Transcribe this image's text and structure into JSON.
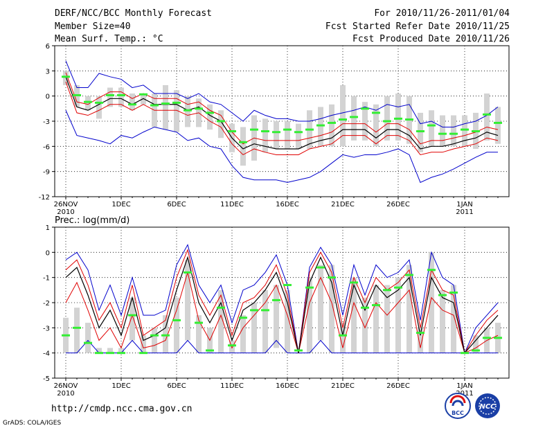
{
  "header": {
    "title": "DERF/NCC/BCC Monthly Forecast",
    "member_size": "Member Size=40",
    "variable": "Mean Surf. Temp.: °C",
    "period": "For 2010/11/26-2011/01/04",
    "start_date": "Fcst Started Refer Date 2010/11/25",
    "produced_date": "Fcst Produced Date 2010/11/26"
  },
  "footer": {
    "url": "http://cmdp.ncc.cma.gov.cn",
    "credit": "GrADS: COLA/IGES",
    "logo_left_text": "BCC",
    "logo_right_text": "NCC"
  },
  "colors": {
    "mean": "#000000",
    "spread": "#e00000",
    "envelope": "#0000cc",
    "box": "#d3d3d3",
    "median": "#33ee33",
    "grid": "#000000"
  },
  "chart_data": [
    {
      "type": "line",
      "title": "Mean Surf. Temp.: °C",
      "xlabel": "",
      "ylabel": "°C",
      "ylim": [
        -12,
        6
      ],
      "yticks": [
        6,
        3,
        0,
        -3,
        -6,
        -9,
        -12
      ],
      "xticks": [
        {
          "day": 0,
          "label": "26NOV",
          "sub": "2010"
        },
        {
          "day": 5,
          "label": "1DEC"
        },
        {
          "day": 10,
          "label": "6DEC"
        },
        {
          "day": 15,
          "label": "11DEC"
        },
        {
          "day": 20,
          "label": "16DEC"
        },
        {
          "day": 25,
          "label": "21DEC"
        },
        {
          "day": 30,
          "label": "26DEC"
        },
        {
          "day": 36,
          "label": "1JAN",
          "sub": "2011"
        }
      ],
      "x_days": [
        0,
        1,
        2,
        3,
        4,
        5,
        6,
        7,
        8,
        9,
        10,
        11,
        12,
        13,
        14,
        15,
        16,
        17,
        18,
        19,
        20,
        21,
        22,
        23,
        24,
        25,
        26,
        27,
        28,
        29,
        30,
        31,
        32,
        33,
        34,
        35,
        36,
        37,
        38,
        39
      ],
      "series": [
        {
          "name": "ensemble mean",
          "values": [
            2.3,
            -1.3,
            -1.7,
            -1.0,
            -0.3,
            -0.3,
            -1.0,
            -0.3,
            -1.0,
            -1.0,
            -1.0,
            -1.7,
            -1.3,
            -2.3,
            -3.0,
            -5.0,
            -6.3,
            -5.7,
            -6.0,
            -6.3,
            -6.3,
            -6.3,
            -5.7,
            -5.3,
            -5.0,
            -4.0,
            -4.0,
            -4.0,
            -5.0,
            -4.0,
            -4.0,
            -4.7,
            -6.3,
            -6.0,
            -6.0,
            -5.7,
            -5.3,
            -5.0,
            -4.3,
            -4.7
          ]
        },
        {
          "name": "mean + spread",
          "values": [
            2.8,
            -0.7,
            -1.0,
            -0.2,
            0.5,
            0.5,
            -0.3,
            0.3,
            -0.3,
            -0.3,
            -0.3,
            -1.0,
            -0.7,
            -1.7,
            -2.3,
            -4.3,
            -5.7,
            -5.0,
            -5.3,
            -5.3,
            -5.3,
            -5.3,
            -5.0,
            -4.7,
            -4.3,
            -3.3,
            -3.3,
            -3.3,
            -4.3,
            -3.3,
            -3.3,
            -4.0,
            -5.7,
            -5.3,
            -5.3,
            -5.0,
            -4.7,
            -4.3,
            -3.7,
            -4.0
          ]
        },
        {
          "name": "mean - spread",
          "values": [
            1.7,
            -2.0,
            -2.3,
            -1.7,
            -1.0,
            -1.0,
            -1.7,
            -1.0,
            -1.7,
            -1.7,
            -1.7,
            -2.3,
            -2.0,
            -3.0,
            -3.7,
            -5.7,
            -7.0,
            -6.3,
            -6.7,
            -7.0,
            -7.0,
            -7.0,
            -6.3,
            -6.0,
            -5.7,
            -4.7,
            -4.7,
            -4.7,
            -5.7,
            -4.7,
            -4.7,
            -5.3,
            -7.0,
            -6.7,
            -6.7,
            -6.3,
            -6.0,
            -5.7,
            -5.0,
            -5.3
          ]
        },
        {
          "name": "ensemble max",
          "values": [
            4.2,
            1.0,
            1.0,
            2.7,
            2.3,
            2.0,
            1.0,
            1.3,
            0.3,
            0.3,
            0.3,
            -0.3,
            0.3,
            -0.7,
            -1.0,
            -2.0,
            -3.0,
            -1.7,
            -2.3,
            -2.7,
            -2.7,
            -3.0,
            -3.0,
            -2.7,
            -2.3,
            -2.0,
            -1.7,
            -1.3,
            -1.7,
            -1.0,
            -1.3,
            -1.0,
            -3.3,
            -3.0,
            -3.7,
            -3.7,
            -3.3,
            -3.0,
            -2.3,
            -1.3
          ]
        },
        {
          "name": "ensemble min",
          "values": [
            -1.7,
            -4.7,
            -5.0,
            -5.3,
            -5.7,
            -4.7,
            -5.0,
            -4.3,
            -3.7,
            -4.0,
            -4.3,
            -5.3,
            -5.0,
            -6.0,
            -6.3,
            -8.3,
            -9.7,
            -10.0,
            -10.0,
            -10.0,
            -10.3,
            -10.0,
            -9.7,
            -9.0,
            -8.0,
            -7.0,
            -7.3,
            -7.0,
            -7.0,
            -6.7,
            -6.3,
            -7.0,
            -10.3,
            -9.7,
            -9.3,
            -8.7,
            -8.0,
            -7.3,
            -6.7,
            -6.7
          ]
        },
        {
          "name": "median",
          "values": [
            2.3,
            0.1,
            -0.7,
            -0.8,
            0.1,
            0.1,
            -1.0,
            0.2,
            -1.1,
            -0.9,
            -0.8,
            -1.7,
            -1.5,
            -2.0,
            -3.0,
            -4.2,
            -5.5,
            -4.0,
            -4.2,
            -4.3,
            -4.0,
            -4.3,
            -4.0,
            -3.5,
            -3.2,
            -2.8,
            -2.5,
            -1.5,
            -2.0,
            -3.0,
            -2.7,
            -2.8,
            -4.2,
            -3.5,
            -4.5,
            -4.5,
            -4.0,
            -4.2,
            -2.2,
            -3.2
          ]
        },
        {
          "name": "box high",
          "values": [
            3.0,
            1.3,
            0.0,
            0.0,
            1.0,
            1.0,
            0.3,
            0.3,
            0.3,
            1.3,
            0.7,
            0.0,
            -0.3,
            -1.0,
            -1.7,
            -3.3,
            -3.7,
            -2.3,
            -2.7,
            -3.0,
            -3.0,
            -3.3,
            -1.7,
            -1.3,
            -1.0,
            1.3,
            0.0,
            -0.7,
            -1.0,
            0.0,
            0.3,
            0.0,
            -2.0,
            -1.7,
            -2.3,
            -2.3,
            -2.3,
            -2.0,
            0.3,
            -1.3
          ]
        },
        {
          "name": "box low",
          "values": [
            1.3,
            -1.3,
            -1.7,
            -2.7,
            -1.3,
            -1.3,
            -1.7,
            -1.0,
            -3.7,
            -4.0,
            -4.3,
            -3.7,
            -3.7,
            -4.0,
            -5.0,
            -6.7,
            -8.3,
            -7.7,
            -6.7,
            -6.3,
            -6.3,
            -6.3,
            -6.3,
            -6.0,
            -6.0,
            -6.0,
            -5.3,
            -5.3,
            -6.0,
            -5.3,
            -5.3,
            -5.7,
            -6.7,
            -6.0,
            -6.0,
            -6.0,
            -6.0,
            -6.3,
            -5.3,
            -5.7
          ]
        }
      ]
    },
    {
      "type": "line",
      "title": "Prec.: log(mm/d)",
      "xlabel": "",
      "ylabel": "log(mm/d)",
      "ylim": [
        -5,
        1
      ],
      "yticks": [
        1,
        0,
        -1,
        -2,
        -3,
        -4,
        -5
      ],
      "xticks": [
        {
          "day": 0,
          "label": "26NOV",
          "sub": "2010"
        },
        {
          "day": 5,
          "label": "1DEC"
        },
        {
          "day": 10,
          "label": "6DEC"
        },
        {
          "day": 15,
          "label": "11DEC"
        },
        {
          "day": 20,
          "label": "16DEC"
        },
        {
          "day": 25,
          "label": "21DEC"
        },
        {
          "day": 30,
          "label": "26DEC"
        },
        {
          "day": 36,
          "label": "1JAN",
          "sub": "2011"
        }
      ],
      "x_days": [
        0,
        1,
        2,
        3,
        4,
        5,
        6,
        7,
        8,
        9,
        10,
        11,
        12,
        13,
        14,
        15,
        16,
        17,
        18,
        19,
        20,
        21,
        22,
        23,
        24,
        25,
        26,
        27,
        28,
        29,
        30,
        31,
        32,
        33,
        34,
        35,
        36,
        37,
        38,
        39
      ],
      "series": [
        {
          "name": "ensemble mean",
          "values": [
            -1.0,
            -0.6,
            -1.7,
            -3.0,
            -2.3,
            -3.3,
            -1.8,
            -3.5,
            -3.3,
            -3.0,
            -1.5,
            -0.2,
            -2.0,
            -2.8,
            -2.0,
            -3.5,
            -2.3,
            -2.0,
            -1.5,
            -0.8,
            -2.0,
            -4.0,
            -1.2,
            -0.2,
            -1.2,
            -3.3,
            -1.3,
            -2.3,
            -1.3,
            -1.8,
            -1.5,
            -1.0,
            -3.3,
            -1.0,
            -1.8,
            -2.0,
            -4.0,
            -3.5,
            -3.0,
            -2.5
          ]
        },
        {
          "name": "mean + spread",
          "values": [
            -0.7,
            -0.3,
            -1.3,
            -2.7,
            -2.0,
            -3.0,
            -1.3,
            -3.3,
            -3.0,
            -2.7,
            -1.0,
            0.1,
            -1.7,
            -2.5,
            -1.7,
            -3.3,
            -2.0,
            -1.8,
            -1.3,
            -0.5,
            -1.7,
            -4.0,
            -0.8,
            0.0,
            -0.8,
            -3.0,
            -1.0,
            -2.0,
            -1.0,
            -1.5,
            -1.2,
            -0.7,
            -3.0,
            -0.7,
            -1.5,
            -1.7,
            -4.0,
            -3.3,
            -2.7,
            -2.3
          ]
        },
        {
          "name": "mean - spread",
          "values": [
            -2.0,
            -1.2,
            -2.3,
            -3.5,
            -3.0,
            -3.8,
            -2.5,
            -3.8,
            -3.7,
            -3.5,
            -2.3,
            -0.8,
            -2.7,
            -3.5,
            -2.5,
            -3.8,
            -3.0,
            -2.5,
            -2.0,
            -1.3,
            -2.5,
            -4.0,
            -2.0,
            -1.0,
            -2.0,
            -3.8,
            -2.0,
            -3.0,
            -2.0,
            -2.5,
            -2.0,
            -1.5,
            -3.8,
            -1.8,
            -2.3,
            -2.5,
            -4.0,
            -3.8,
            -3.5,
            -3.3
          ]
        },
        {
          "name": "ensemble max",
          "values": [
            -0.3,
            0.0,
            -0.7,
            -2.3,
            -1.3,
            -2.5,
            -1.0,
            -2.5,
            -2.5,
            -2.3,
            -0.5,
            0.3,
            -1.3,
            -2.0,
            -1.3,
            -2.8,
            -1.5,
            -1.3,
            -0.8,
            -0.1,
            -1.3,
            -4.0,
            -0.6,
            0.2,
            -0.5,
            -2.5,
            -0.5,
            -1.7,
            -0.5,
            -1.0,
            -0.8,
            -0.3,
            -2.7,
            0.0,
            -1.0,
            -1.3,
            -4.0,
            -3.0,
            -2.5,
            -2.0
          ]
        },
        {
          "name": "ensemble min",
          "values": [
            -4.0,
            -4.0,
            -3.5,
            -4.0,
            -4.0,
            -4.0,
            -3.5,
            -4.0,
            -4.0,
            -4.0,
            -4.0,
            -3.5,
            -4.0,
            -4.0,
            -4.0,
            -4.0,
            -4.0,
            -4.0,
            -4.0,
            -3.5,
            -4.0,
            -4.0,
            -4.0,
            -3.5,
            -4.0,
            -4.0,
            -4.0,
            -4.0,
            -4.0,
            -4.0,
            -4.0,
            -4.0,
            -4.0,
            -4.0,
            -4.0,
            -4.0,
            -4.0,
            -4.0,
            -4.0,
            -4.0
          ]
        },
        {
          "name": "median",
          "values": [
            -3.3,
            -3.0,
            -3.6,
            -4.0,
            -4.0,
            -4.0,
            -2.5,
            -4.0,
            -3.3,
            -3.3,
            -2.7,
            -0.8,
            -2.8,
            -3.9,
            -2.2,
            -3.7,
            -2.6,
            -2.3,
            -2.3,
            -1.9,
            -1.3,
            -3.9,
            -1.4,
            -0.6,
            -1.0,
            -3.3,
            -1.2,
            -2.2,
            -2.1,
            -1.5,
            -1.4,
            -0.9,
            -3.2,
            -0.7,
            -1.7,
            -1.6,
            -4.0,
            -3.9,
            -3.4,
            -3.4
          ]
        },
        {
          "name": "box high",
          "values": [
            -2.6,
            -2.2,
            -2.8,
            -3.8,
            -3.8,
            -3.8,
            -1.8,
            -3.3,
            -3.0,
            -2.5,
            -1.8,
            -0.3,
            -2.5,
            -3.0,
            -1.5,
            -3.5,
            -2.5,
            -2.0,
            -1.5,
            -1.3,
            -1.5,
            -4.0,
            -1.0,
            -0.5,
            -0.5,
            -2.8,
            -1.0,
            -1.8,
            -1.3,
            -1.3,
            -1.0,
            -0.5,
            -3.0,
            0.0,
            -1.5,
            -1.3,
            -4.0,
            -3.3,
            -3.0,
            -2.8
          ]
        },
        {
          "name": "box low",
          "values": [
            -4.0,
            -4.0,
            -4.0,
            -4.0,
            -4.0,
            -4.0,
            -3.5,
            -4.0,
            -4.0,
            -4.0,
            -4.0,
            -3.5,
            -4.0,
            -4.0,
            -4.0,
            -4.0,
            -4.0,
            -4.0,
            -4.0,
            -3.8,
            -4.0,
            -4.0,
            -4.0,
            -3.5,
            -4.0,
            -4.0,
            -4.0,
            -4.0,
            -4.0,
            -4.0,
            -4.0,
            -4.0,
            -4.0,
            -4.0,
            -4.0,
            -4.0,
            -4.0,
            -4.0,
            -4.0,
            -4.0
          ]
        }
      ]
    }
  ]
}
